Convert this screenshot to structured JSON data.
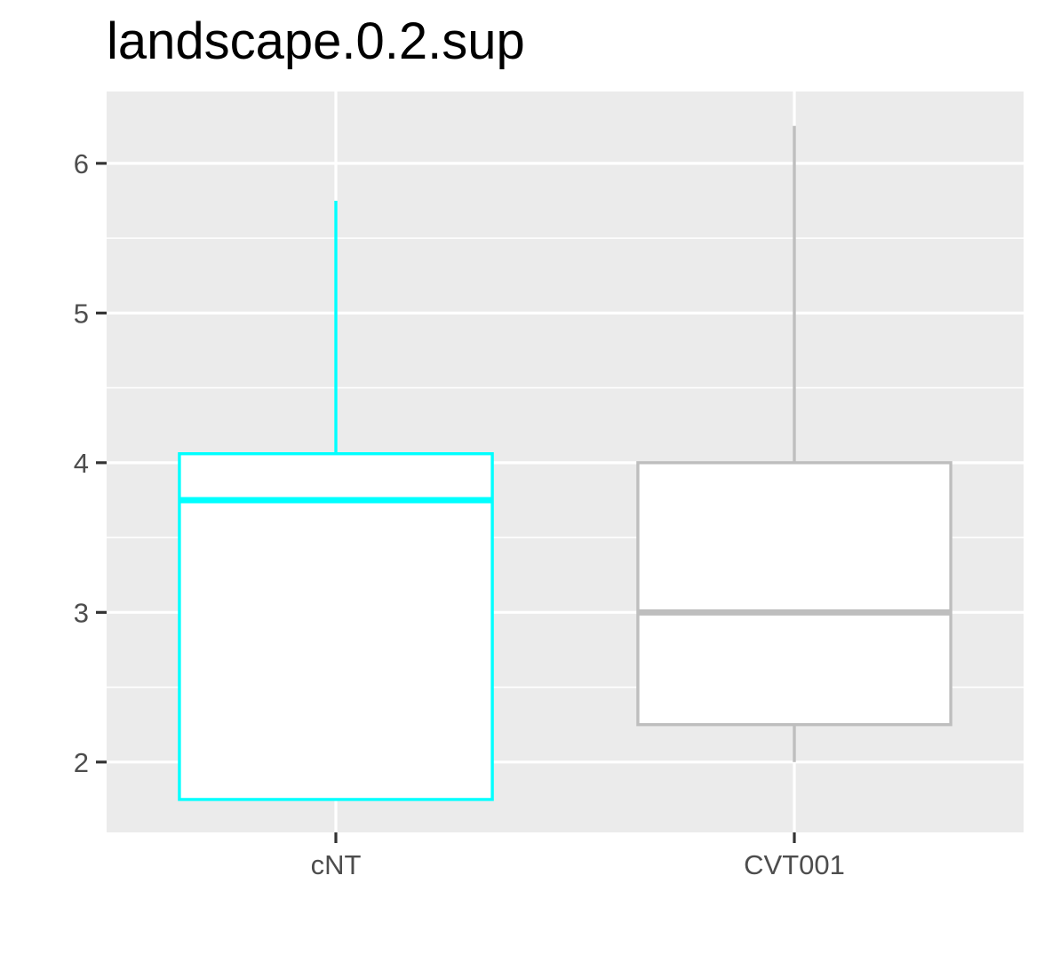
{
  "chart_data": {
    "type": "boxplot",
    "title": "landscape.0.2.sup",
    "xlabel": "",
    "ylabel": "",
    "categories": [
      "cNT",
      "CVT001"
    ],
    "boxes": [
      {
        "category": "cNT",
        "whisker_low": 1.75,
        "q1": 1.75,
        "median": 3.75,
        "q3": 4.06,
        "whisker_high": 5.75,
        "color": "#00FFFF"
      },
      {
        "category": "CVT001",
        "whisker_low": 2.0,
        "q1": 2.25,
        "median": 3.0,
        "q3": 4.0,
        "whisker_high": 6.25,
        "color": "#BEBEBE"
      }
    ],
    "ylim": [
      1.53,
      6.48
    ],
    "y_ticks": [
      2,
      3,
      4,
      5,
      6
    ],
    "y_tick_labels": [
      "2",
      "3",
      "4",
      "5",
      "6"
    ],
    "grid": true,
    "panel_background": "#EBEBEB",
    "grid_color": "#FFFFFF",
    "legend": "none"
  }
}
